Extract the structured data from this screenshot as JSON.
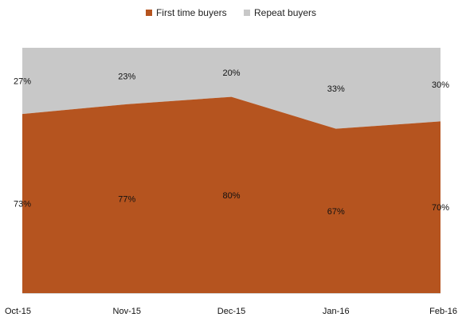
{
  "chart_data": {
    "type": "area",
    "stacked": "percent",
    "categories": [
      "Oct-15",
      "Nov-15",
      "Dec-15",
      "Jan-16",
      "Feb-16"
    ],
    "series": [
      {
        "name": "First time buyers",
        "values": [
          73,
          77,
          80,
          67,
          70
        ],
        "labels": [
          "73%",
          "77%",
          "80%",
          "67%",
          "70%"
        ],
        "color": "#b5541f"
      },
      {
        "name": "Repeat buyers",
        "values": [
          27,
          23,
          20,
          33,
          30
        ],
        "labels": [
          "27%",
          "23%",
          "20%",
          "33%",
          "30%"
        ],
        "color": "#c8c8c8"
      }
    ],
    "ylim": [
      0,
      100
    ],
    "grid": false,
    "legend_position": "top"
  }
}
